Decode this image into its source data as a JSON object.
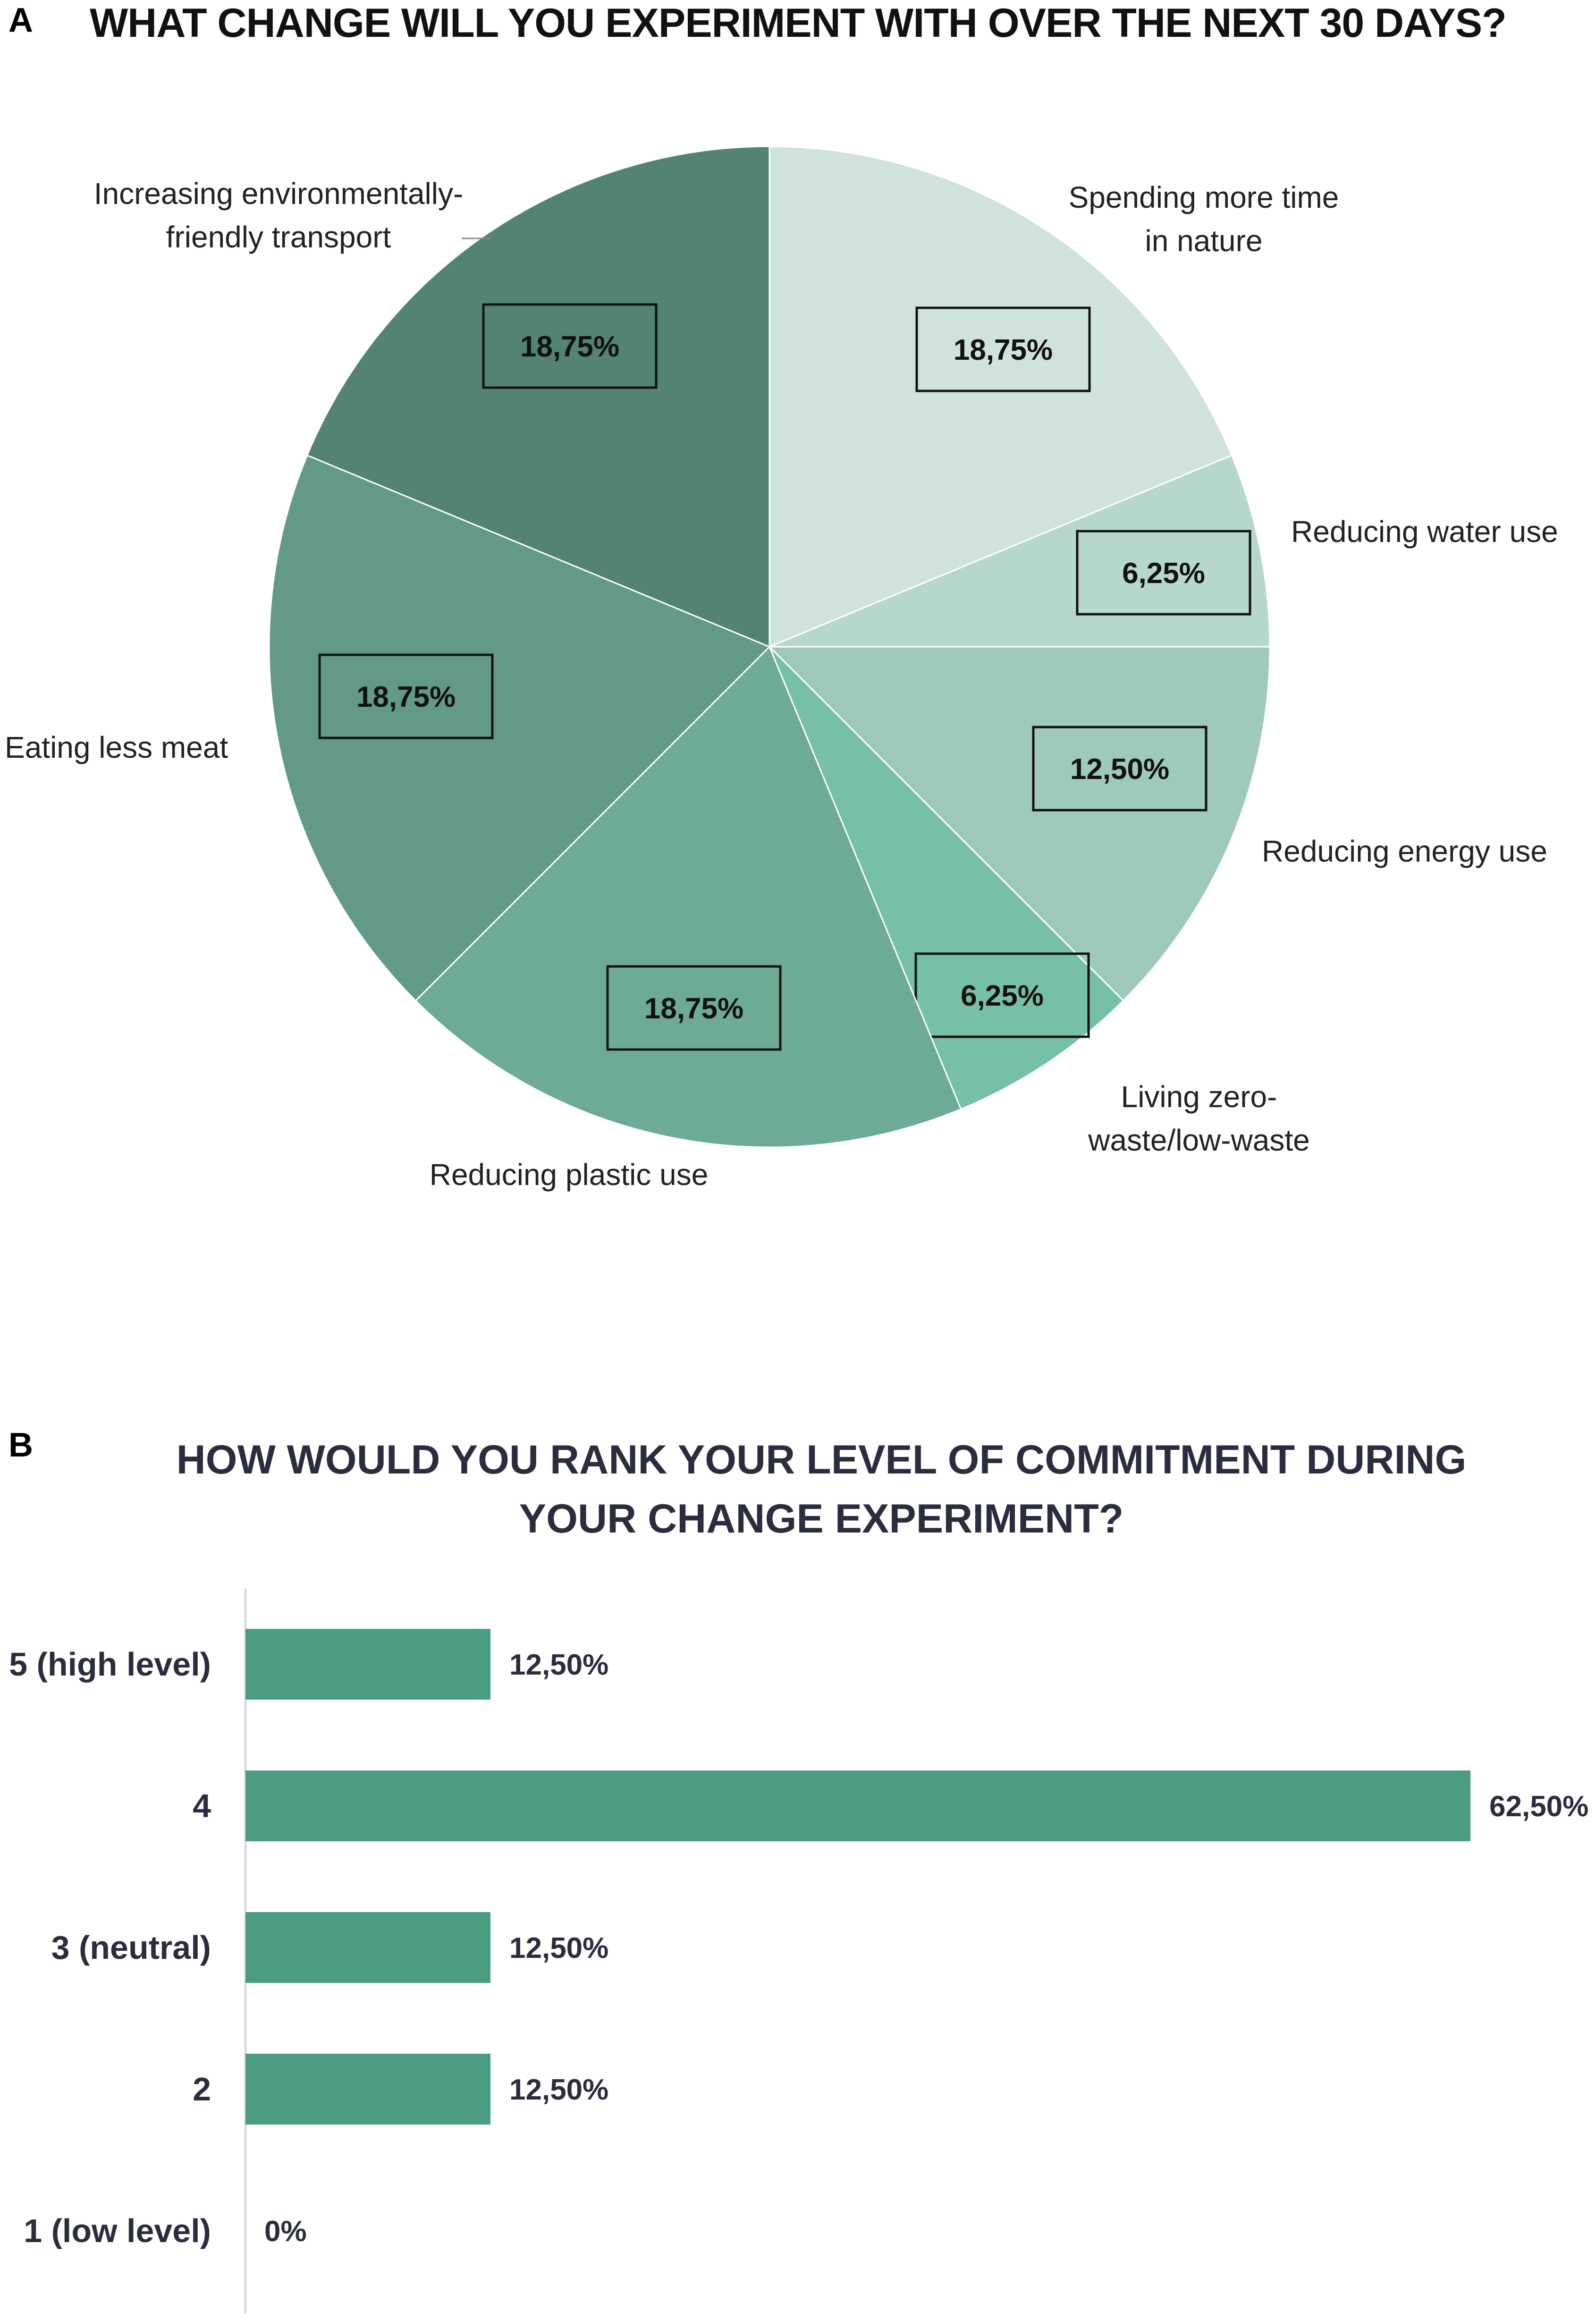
{
  "panels": {
    "a_letter": "A",
    "b_letter": "B"
  },
  "chart_data": [
    {
      "type": "pie",
      "title": "WHAT CHANGE WILL YOU EXPERIMENT WITH OVER THE NEXT 30 DAYS?",
      "slices": [
        {
          "label_lines": [
            "Spending more time",
            "in nature"
          ],
          "value": 18.75,
          "display": "18,75%",
          "color": "#cfe3dc"
        },
        {
          "label_lines": [
            "Reducing water use"
          ],
          "value": 6.25,
          "display": "6,25%",
          "color": "#b6d8cc"
        },
        {
          "label_lines": [
            "Reducing energy use"
          ],
          "value": 12.5,
          "display": "12,50%",
          "color": "#9ecab9"
        },
        {
          "label_lines": [
            "Living zero-",
            "waste/low-waste"
          ],
          "value": 6.25,
          "display": "6,25%",
          "color": "#76bfa8"
        },
        {
          "label_lines": [
            "Reducing plastic use"
          ],
          "value": 18.75,
          "display": "18,75%",
          "color": "#6dab95"
        },
        {
          "label_lines": [
            "Eating less meat"
          ],
          "value": 18.75,
          "display": "18,75%",
          "color": "#629a86"
        },
        {
          "label_lines": [
            "Increasing environmentally-",
            "friendly transport"
          ],
          "value": 18.75,
          "display": "18,75%",
          "color": "#528373"
        }
      ]
    },
    {
      "type": "bar",
      "orientation": "horizontal",
      "title_lines": [
        "HOW WOULD YOU RANK YOUR LEVEL OF COMMITMENT DURING",
        "YOUR CHANGE EXPERIMENT?"
      ],
      "categories": [
        "5  (high level)",
        "4",
        "3 (neutral)",
        "2",
        "1 (low level)"
      ],
      "values": [
        12.5,
        62.5,
        12.5,
        12.5,
        0
      ],
      "value_labels": [
        "12,50%",
        "62,50%",
        "12,50%",
        "12,50%",
        "0%"
      ],
      "xlim": [
        0,
        62.5
      ],
      "bar_color": "#4a9c82",
      "grid": false
    }
  ]
}
